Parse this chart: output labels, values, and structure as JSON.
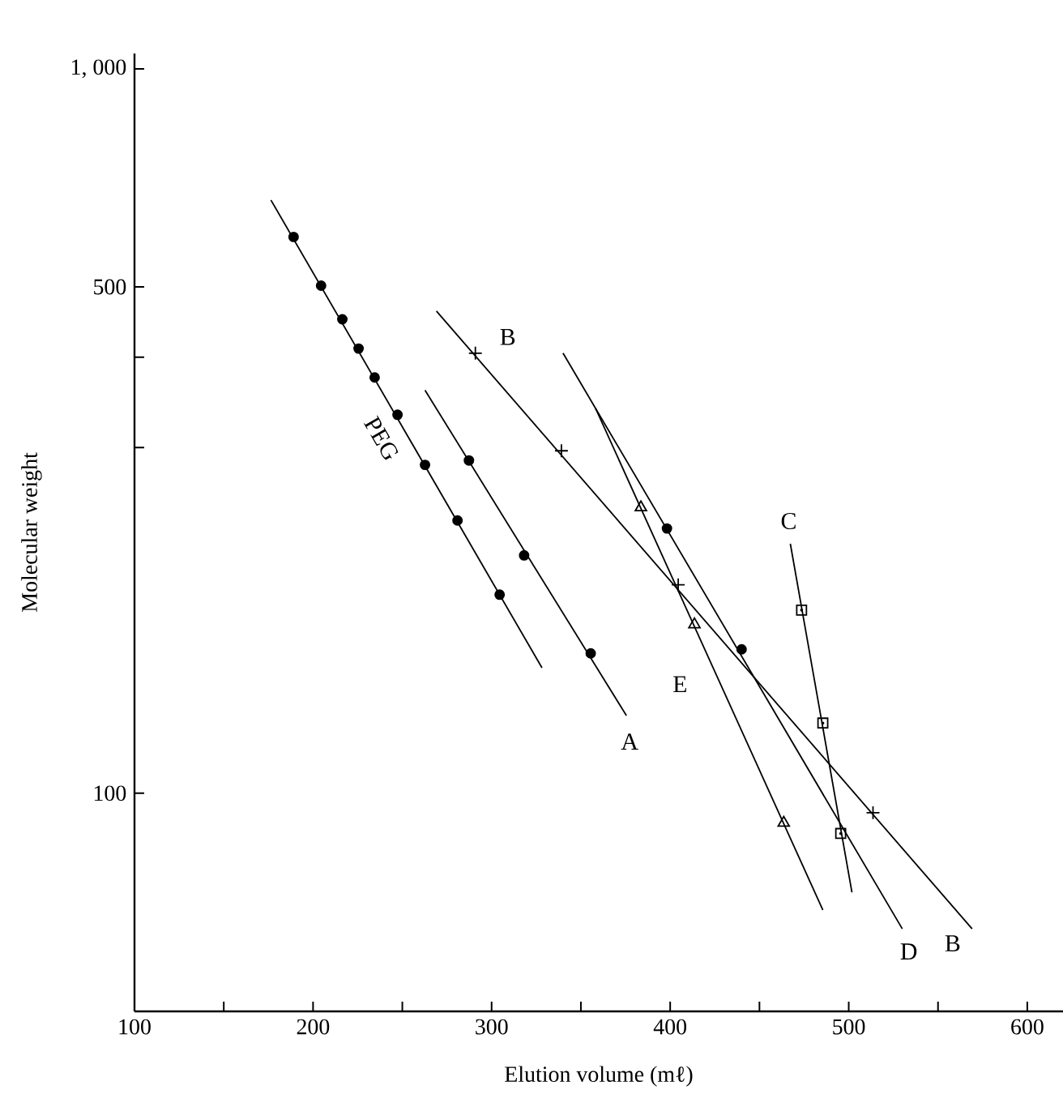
{
  "chart_data": {
    "type": "scatter",
    "xlabel": "Elution volume (mℓ)",
    "ylabel": "Molecular weight",
    "log": "y",
    "xlim": [
      100,
      620
    ],
    "ylim": [
      50,
      1050
    ],
    "xticks": [
      100,
      {
        "value": 150,
        "label": null
      },
      200,
      {
        "value": 250,
        "label": null
      },
      300,
      {
        "value": 350,
        "label": null
      },
      400,
      {
        "value": 450,
        "label": null
      },
      500,
      {
        "value": 550,
        "label": null
      },
      600
    ],
    "yticks": [
      100,
      {
        "value": 300,
        "label": null
      },
      {
        "value": 400,
        "label": null
      },
      500,
      {
        "value": 1000,
        "label": "1, 000"
      }
    ],
    "series": [
      {
        "marker": "circle",
        "color": "#000000",
        "x": [
          189.1,
          204.5,
          216.4,
          225.5,
          234.5,
          247.3,
          262.7,
          280.9,
          304.5
        ],
        "values": [
          586,
          502,
          451,
          411,
          375,
          333,
          284,
          238,
          188
        ]
      },
      {
        "type": "line",
        "name": "PEG",
        "marker": "none",
        "color": "#000000",
        "x": [
          176.4,
          328.2
        ],
        "values": [
          659,
          149
        ]
      },
      {
        "marker": "circle",
        "color": "#000000",
        "x": [
          287.3,
          318.2,
          355.5
        ],
        "values": [
          288,
          213,
          156
        ]
      },
      {
        "type": "line",
        "name": "A",
        "marker": "none",
        "color": "#000000",
        "x": [
          262.7,
          375.5
        ],
        "values": [
          360,
          128
        ]
      },
      {
        "marker": "cross",
        "color": "#000000",
        "x": [
          290.9,
          339.1,
          404.5,
          513.6
        ],
        "values": [
          405,
          297,
          194,
          94
        ]
      },
      {
        "type": "line",
        "name": "B",
        "marker": "none",
        "color": "#000000",
        "x": [
          269.1,
          569.1
        ],
        "values": [
          463,
          65
        ]
      },
      {
        "marker": "square",
        "color": "#000000",
        "x": [
          473.6,
          485.5,
          495.5
        ],
        "values": [
          179,
          125,
          88
        ]
      },
      {
        "type": "line",
        "name": "C",
        "marker": "none",
        "color": "#000000",
        "x": [
          467.3,
          501.8
        ],
        "values": [
          221,
          73
        ]
      },
      {
        "marker": "circle",
        "color": "#000000",
        "x": [
          398.2,
          440
        ],
        "values": [
          232,
          158
        ]
      },
      {
        "type": "line",
        "name": "D",
        "marker": "none",
        "color": "#000000",
        "x": [
          340,
          530
        ],
        "values": [
          405,
          65
        ]
      },
      {
        "marker": "triangle",
        "color": "#000000",
        "x": [
          383.6,
          413.6,
          463.6
        ],
        "values": [
          248,
          171,
          91
        ]
      },
      {
        "type": "line",
        "name": "E",
        "marker": "none",
        "color": "#000000",
        "x": [
          358.2,
          485.5
        ],
        "values": [
          340,
          69
        ]
      }
    ]
  }
}
